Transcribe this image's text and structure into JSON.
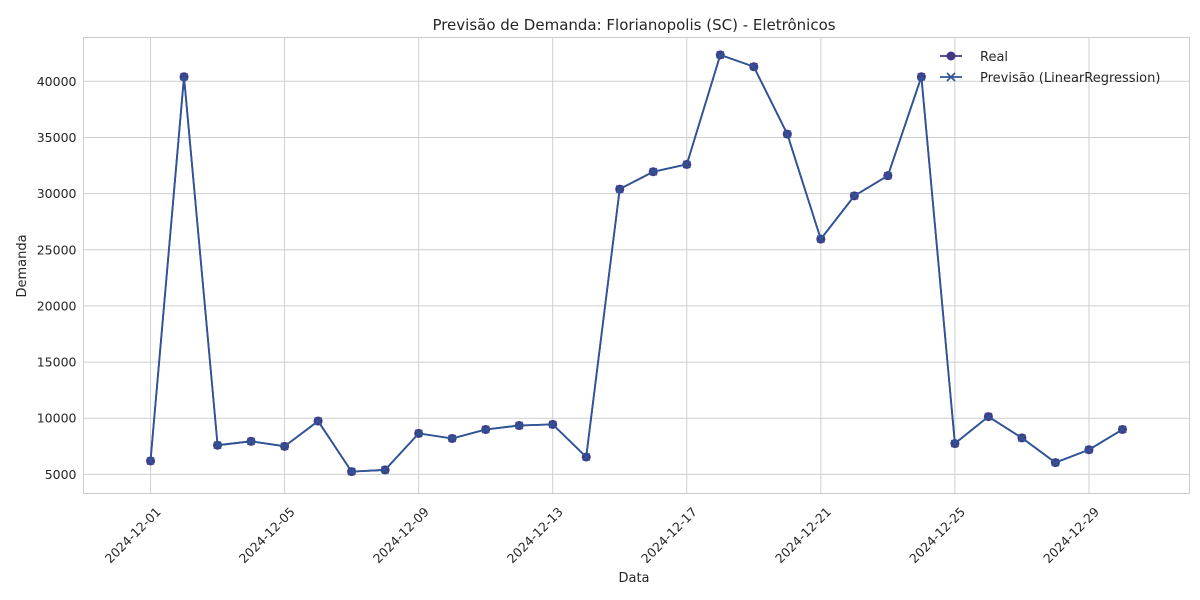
{
  "chart_data": {
    "type": "line",
    "title": "Previsão de Demanda: Florianopolis (SC) - Eletrônicos",
    "xlabel": "Data",
    "ylabel": "Demanda",
    "x_ticks": [
      "2024-12-01",
      "2024-12-05",
      "2024-12-09",
      "2024-12-13",
      "2024-12-17",
      "2024-12-21",
      "2024-12-25",
      "2024-12-29"
    ],
    "y_ticks": [
      5000,
      10000,
      15000,
      20000,
      25000,
      30000,
      35000,
      40000
    ],
    "ylim": [
      3300,
      43900
    ],
    "xlim": [
      "2024-11-29",
      "2025-01-01"
    ],
    "grid": true,
    "legend_position": "top-right",
    "x": [
      "2024-12-01",
      "2024-12-02",
      "2024-12-03",
      "2024-12-04",
      "2024-12-05",
      "2024-12-06",
      "2024-12-07",
      "2024-12-08",
      "2024-12-09",
      "2024-12-10",
      "2024-12-11",
      "2024-12-12",
      "2024-12-13",
      "2024-12-14",
      "2024-12-15",
      "2024-12-16",
      "2024-12-17",
      "2024-12-18",
      "2024-12-19",
      "2024-12-20",
      "2024-12-21",
      "2024-12-22",
      "2024-12-23",
      "2024-12-24",
      "2024-12-25",
      "2024-12-26",
      "2024-12-27",
      "2024-12-28",
      "2024-12-29",
      "2024-12-30"
    ],
    "series": [
      {
        "name": "Real",
        "color": "#453781",
        "marker": "circle",
        "values": [
          6200,
          40400,
          7600,
          7950,
          7500,
          9750,
          5250,
          5400,
          8650,
          8200,
          9000,
          9350,
          9450,
          6550,
          30400,
          31950,
          32600,
          42350,
          41300,
          35300,
          25950,
          29800,
          31600,
          40400,
          7750,
          10150,
          8250,
          6050,
          7200,
          9000
        ]
      },
      {
        "name": "Previsão (LinearRegression)",
        "color": "#2e5597",
        "marker": "x",
        "values": [
          6200,
          40400,
          7600,
          7950,
          7500,
          9750,
          5250,
          5400,
          8650,
          8200,
          9000,
          9350,
          9450,
          6550,
          30400,
          31950,
          32600,
          42350,
          41300,
          35300,
          25950,
          29800,
          31600,
          40400,
          7750,
          10150,
          8250,
          6050,
          7200,
          9000
        ]
      }
    ]
  }
}
